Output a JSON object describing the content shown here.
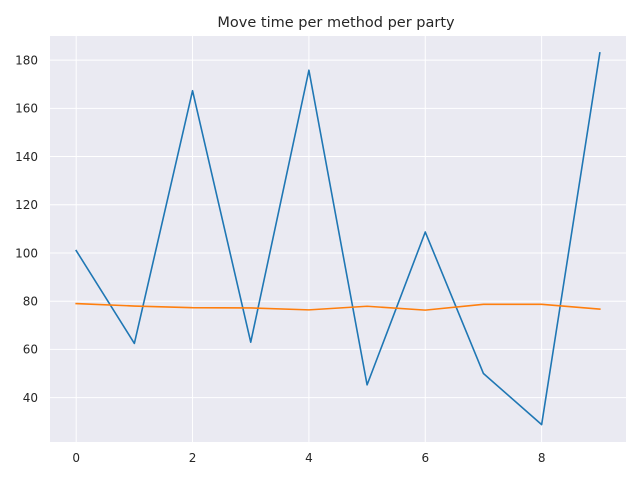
{
  "chart_data": {
    "type": "line",
    "title": "Move time per method per party",
    "xlabel": "",
    "ylabel": "",
    "x": [
      0,
      1,
      2,
      3,
      4,
      5,
      6,
      7,
      8,
      9
    ],
    "xlim": [
      -0.45,
      9.45
    ],
    "ylim": [
      21.6,
      190
    ],
    "xticks": [
      0,
      2,
      4,
      6,
      8
    ],
    "yticks": [
      40,
      60,
      80,
      100,
      120,
      140,
      160,
      180
    ],
    "grid": true,
    "legend": "none",
    "series": [
      {
        "color": "#1f77b4",
        "values": [
          101,
          62.5,
          167.3,
          63,
          175.8,
          45.3,
          108.7,
          50,
          28.8,
          183
        ]
      },
      {
        "color": "#ff7f0e",
        "values": [
          79,
          78,
          77.3,
          77.2,
          76.4,
          77.9,
          76.3,
          78.7,
          78.7,
          76.7
        ]
      }
    ]
  }
}
